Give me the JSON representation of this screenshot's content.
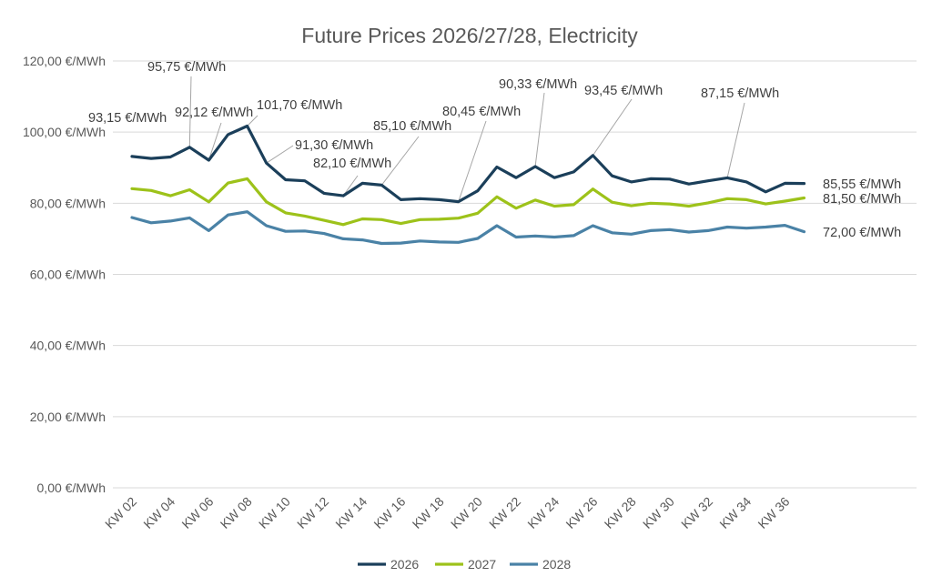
{
  "chart_data": {
    "type": "line",
    "title": "Future Prices 2026/27/28, Electricity",
    "xlabel": "",
    "ylabel": "",
    "ylim": [
      0,
      120
    ],
    "yticks": [
      0,
      20,
      40,
      60,
      80,
      100,
      120
    ],
    "ytick_labels": [
      "0,00 €/MWh",
      "20,00 €/MWh",
      "40,00 €/MWh",
      "60,00 €/MWh",
      "80,00 €/MWh",
      "100,00 €/MWh",
      "120,00 €/MWh"
    ],
    "x": [
      "KW 02",
      "KW 03",
      "KW 04",
      "KW 05",
      "KW 06",
      "KW 07",
      "KW 08",
      "KW 09",
      "KW 10",
      "KW 11",
      "KW 12",
      "KW 13",
      "KW 14",
      "KW 15",
      "KW 16",
      "KW 17",
      "KW 18",
      "KW 19",
      "KW 20",
      "KW 21",
      "KW 22",
      "KW 23",
      "KW 24",
      "KW 25",
      "KW 26",
      "KW 27",
      "KW 28",
      "KW 29",
      "KW 30",
      "KW 31",
      "KW 32",
      "KW 33",
      "KW 34",
      "KW 35",
      "KW 36",
      "KW 37"
    ],
    "xtick_labels": [
      "KW 02",
      "KW 04",
      "KW 06",
      "KW 08",
      "KW 10",
      "KW 12",
      "KW 14",
      "KW 16",
      "KW 18",
      "KW 20",
      "KW 22",
      "KW 24",
      "KW 26",
      "KW 28",
      "KW 30",
      "KW 32",
      "KW 34",
      "KW 36"
    ],
    "grid": true,
    "legend_position": "bottom",
    "series": [
      {
        "name": "2026",
        "color": "#1b3f5a",
        "values": [
          93.15,
          92.6,
          93.0,
          95.75,
          92.12,
          99.3,
          101.7,
          91.3,
          86.6,
          86.3,
          82.8,
          82.1,
          85.6,
          85.1,
          81.0,
          81.3,
          81.0,
          80.45,
          83.5,
          90.2,
          87.2,
          90.33,
          87.2,
          88.8,
          93.45,
          87.7,
          86.0,
          86.9,
          86.8,
          85.4,
          86.3,
          87.15,
          86.0,
          83.2,
          85.6,
          85.55
        ]
      },
      {
        "name": "2027",
        "color": "#9dc21a",
        "values": [
          84.1,
          83.6,
          82.1,
          83.8,
          80.4,
          85.7,
          86.9,
          80.4,
          77.3,
          76.4,
          75.2,
          74.0,
          75.6,
          75.4,
          74.3,
          75.4,
          75.5,
          75.8,
          77.2,
          81.8,
          78.6,
          80.9,
          79.2,
          79.6,
          84.0,
          80.3,
          79.3,
          80.0,
          79.8,
          79.2,
          80.1,
          81.3,
          81.0,
          79.8,
          80.6,
          81.5
        ]
      },
      {
        "name": "2028",
        "color": "#4a82a6",
        "values": [
          76.0,
          74.5,
          75.0,
          75.9,
          72.3,
          76.7,
          77.6,
          73.7,
          72.1,
          72.2,
          71.5,
          70.0,
          69.7,
          68.7,
          68.8,
          69.4,
          69.1,
          69.0,
          70.1,
          73.7,
          70.5,
          70.8,
          70.5,
          70.9,
          73.7,
          71.7,
          71.3,
          72.3,
          72.6,
          71.9,
          72.3,
          73.3,
          73.0,
          73.3,
          73.8,
          72.0
        ]
      }
    ],
    "annotations": [
      {
        "text": "93,15 €/MWh",
        "series": "2026",
        "x": "KW 02"
      },
      {
        "text": "95,75 €/MWh",
        "series": "2026",
        "x": "KW 05"
      },
      {
        "text": "92,12 €/MWh",
        "series": "2026",
        "x": "KW 06"
      },
      {
        "text": "101,70 €/MWh",
        "series": "2026",
        "x": "KW 08"
      },
      {
        "text": "91,30 €/MWh",
        "series": "2026",
        "x": "KW 09"
      },
      {
        "text": "82,10 €/MWh",
        "series": "2026",
        "x": "KW 13"
      },
      {
        "text": "85,10 €/MWh",
        "series": "2026",
        "x": "KW 15"
      },
      {
        "text": "80,45 €/MWh",
        "series": "2026",
        "x": "KW 19"
      },
      {
        "text": "90,33 €/MWh",
        "series": "2026",
        "x": "KW 23"
      },
      {
        "text": "93,45 €/MWh",
        "series": "2026",
        "x": "KW 26"
      },
      {
        "text": "87,15 €/MWh",
        "series": "2026",
        "x": "KW 33"
      }
    ],
    "end_labels": [
      {
        "text": "85,55 €/MWh",
        "series": "2026"
      },
      {
        "text": "81,50 €/MWh",
        "series": "2027"
      },
      {
        "text": "72,00 €/MWh",
        "series": "2028"
      }
    ]
  }
}
